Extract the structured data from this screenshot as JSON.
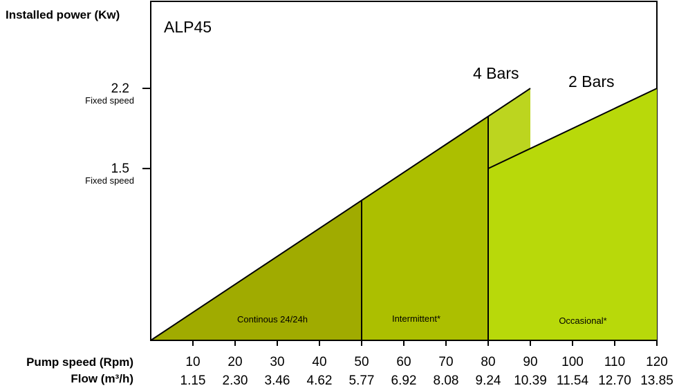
{
  "chart_data": {
    "type": "area",
    "title": "ALP45",
    "ylabel": "Installed power (Kw)",
    "xlabel": "Pump speed (Rpm)",
    "x2label": "Flow (m³/h)",
    "x": [
      10,
      20,
      30,
      40,
      50,
      60,
      70,
      80,
      90,
      100,
      110,
      120
    ],
    "x_flow": [
      "1.15",
      "2.30",
      "3.46",
      "4.62",
      "5.77",
      "6.92",
      "8.08",
      "9.24",
      "10.39",
      "11.54",
      "12.70",
      "13.85"
    ],
    "xlim": [
      0,
      120
    ],
    "yticks": [
      {
        "value": 2.2,
        "label": "2.2",
        "note": "Fixed speed"
      },
      {
        "value": 1.5,
        "label": "1.5",
        "note": "Fixed speed"
      }
    ],
    "series": [
      {
        "name": "4 Bars",
        "x": [
          0,
          90
        ],
        "y": [
          0,
          2.2
        ],
        "color": "#bcd51f"
      },
      {
        "name": "2 Bars",
        "x": [
          80,
          120
        ],
        "y": [
          1.5,
          2.2
        ],
        "color": "#b8d90a"
      }
    ],
    "zones": [
      {
        "label": "Continous 24/24h",
        "x_start": 0,
        "x_end": 50,
        "color": "#a0ab00"
      },
      {
        "label": "Intermittent*",
        "x_start": 50,
        "x_end": 80,
        "color": "#acbf00"
      },
      {
        "label": "Occasional*",
        "x_start": 80,
        "x_end": 120,
        "color": "#b8d90a"
      }
    ],
    "grid": false
  }
}
